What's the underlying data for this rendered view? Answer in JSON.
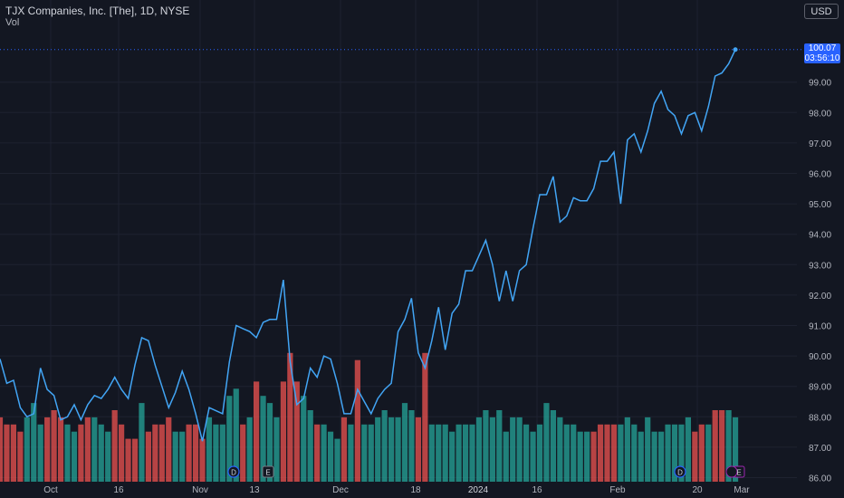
{
  "legend": {
    "title": "TJX Companies, Inc. [The], 1D, NYSE",
    "indicator": "Vol"
  },
  "currency_button": "USD",
  "last_price_tag": {
    "price": "100.07",
    "countdown": "03:56:10"
  },
  "colors": {
    "background": "#131722",
    "price_line": "#42a5f5",
    "volume_up": "#26a69a",
    "volume_down": "#ef5350",
    "grid": "#1e2230",
    "axis_text": "#b2b5be",
    "accent": "#2962ff"
  },
  "events": [
    {
      "type": "dividend",
      "label": "D",
      "date_index": 13,
      "color": "#2962ff"
    },
    {
      "type": "earnings",
      "label": "E",
      "date_index": 15,
      "color": "#787b86"
    },
    {
      "type": "dividend",
      "label": "D",
      "date_index": 39,
      "color": "#2962ff"
    },
    {
      "type": "split-earnings",
      "label": "E",
      "date_index": 42,
      "color": "#9c27b0"
    }
  ],
  "chart_data": {
    "type": "line",
    "title": "TJX Companies, Inc. [The], 1D, NYSE",
    "x_tick_labels": [
      "Oct",
      "16",
      "Nov",
      "13",
      "Dec",
      "18",
      "2024",
      "16",
      "Feb",
      "20",
      "Mar"
    ],
    "y_tick_labels": [
      "86.00",
      "87.00",
      "88.00",
      "89.00",
      "90.00",
      "91.00",
      "92.00",
      "93.00",
      "94.00",
      "95.00",
      "96.00",
      "97.00",
      "98.00",
      "99.00"
    ],
    "ylim": [
      86,
      100.6
    ],
    "grid": true,
    "series": [
      {
        "type": "line",
        "x_unit": "trading day index (Sep 28 2023 – Feb 23 2024)",
        "values": [
          89.9,
          89.1,
          89.2,
          88.3,
          88.0,
          88.1,
          89.6,
          88.9,
          88.7,
          87.9,
          88.0,
          88.4,
          87.9,
          88.4,
          88.7,
          88.6,
          88.9,
          89.3,
          88.9,
          88.6,
          89.7,
          90.6,
          90.5,
          89.7,
          89.0,
          88.3,
          88.8,
          89.5,
          88.9,
          88.1,
          87.2,
          88.3,
          88.2,
          88.1,
          89.8,
          91.0,
          90.9,
          90.8,
          90.6,
          91.1,
          91.2,
          91.2,
          92.5,
          89.8,
          88.4,
          88.6,
          89.6,
          89.3,
          90.0,
          89.9,
          89.1,
          88.1,
          88.1,
          88.9,
          88.5,
          88.1,
          88.6,
          88.9,
          89.1,
          90.8,
          91.2,
          91.9,
          90.1,
          89.6,
          90.5,
          91.6,
          90.2,
          91.4,
          91.7,
          92.8,
          92.8,
          93.3,
          93.8,
          93.0,
          91.8,
          92.8,
          91.8,
          92.8,
          93.0,
          94.2,
          95.3,
          95.3,
          95.9,
          94.4,
          94.6,
          95.2,
          95.1,
          95.1,
          95.5,
          96.4,
          96.4,
          96.7,
          95.0,
          97.1,
          97.3,
          96.7,
          97.4,
          98.3,
          98.7,
          98.1,
          97.9,
          97.3,
          97.9,
          98.0,
          97.4,
          98.2,
          99.2,
          99.3,
          99.6,
          100.07
        ],
        "last_value": 100.07
      },
      {
        "type": "bar",
        "name": "Vol",
        "values": [
          9,
          8,
          8,
          7,
          9,
          11,
          8,
          9,
          10,
          9,
          8,
          7,
          8,
          9,
          9,
          8,
          7,
          10,
          8,
          6,
          6,
          11,
          7,
          8,
          8,
          9,
          7,
          7,
          8,
          8,
          6,
          9,
          8,
          8,
          12,
          13,
          8,
          9,
          14,
          12,
          11,
          9,
          14,
          18,
          14,
          12,
          10,
          8,
          8,
          7,
          6,
          9,
          8,
          17,
          8,
          8,
          9,
          10,
          9,
          9,
          11,
          10,
          9,
          18,
          8,
          8,
          8,
          7,
          8,
          8,
          8,
          9,
          10,
          9,
          10,
          7,
          9,
          9,
          8,
          7,
          8,
          11,
          10,
          9,
          8,
          8,
          7,
          7,
          7,
          8,
          8,
          8,
          8,
          9,
          8,
          7,
          9,
          7,
          7,
          8,
          8,
          8,
          9,
          7,
          8,
          8,
          10,
          10,
          10,
          9
        ],
        "up": [
          0,
          0,
          0,
          0,
          1,
          1,
          1,
          0,
          0,
          0,
          1,
          1,
          0,
          0,
          1,
          1,
          1,
          0,
          0,
          0,
          0,
          1,
          0,
          0,
          0,
          0,
          1,
          1,
          0,
          0,
          0,
          1,
          1,
          1,
          1,
          1,
          0,
          1,
          0,
          1,
          1,
          1,
          0,
          0,
          0,
          1,
          1,
          0,
          1,
          1,
          1,
          0,
          1,
          0,
          1,
          1,
          1,
          1,
          1,
          1,
          1,
          1,
          0,
          0,
          1,
          1,
          1,
          1,
          1,
          1,
          1,
          1,
          1,
          1,
          1,
          1,
          1,
          1,
          1,
          1,
          1,
          1,
          1,
          1,
          1,
          1,
          1,
          1,
          0,
          0,
          0,
          0,
          1,
          1,
          1,
          1,
          1,
          1,
          1,
          1,
          1,
          1,
          1,
          0,
          0,
          1,
          0,
          0,
          1,
          1
        ]
      }
    ]
  }
}
